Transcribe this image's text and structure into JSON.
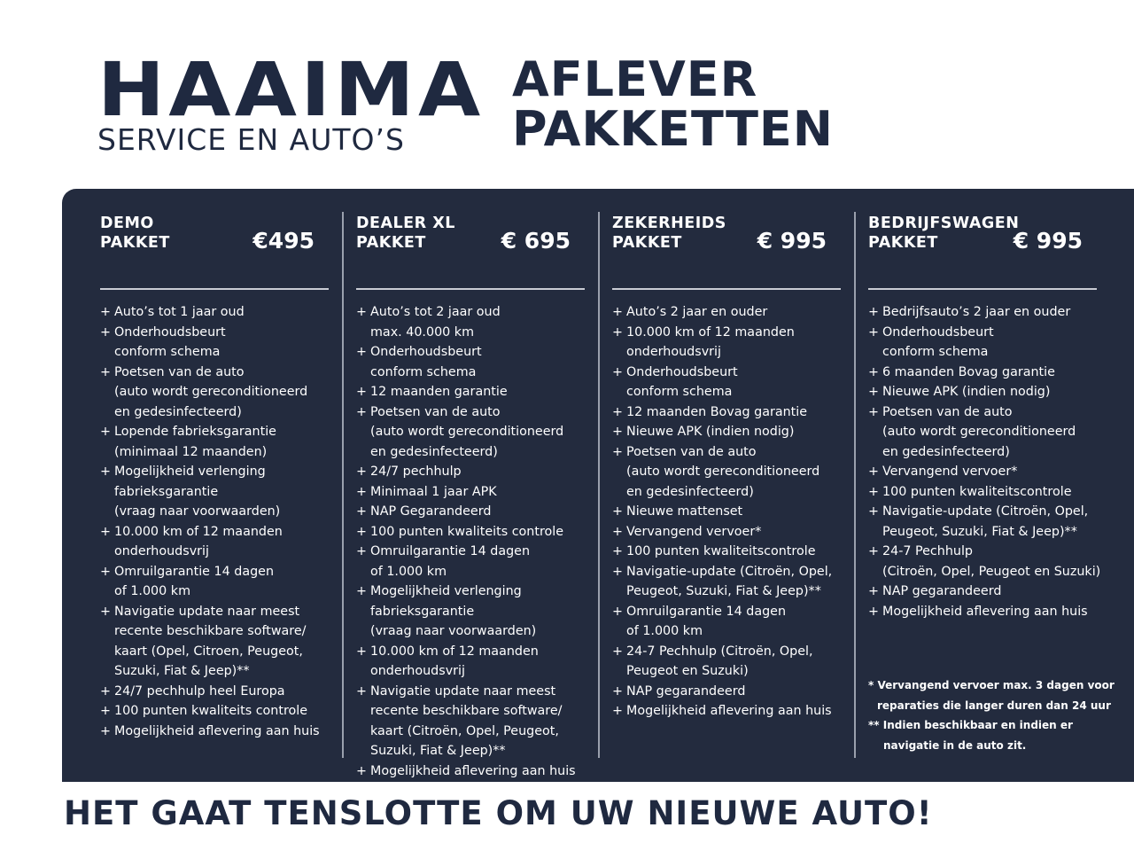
{
  "brand": {
    "name": "HAAIMA",
    "subtitle": "SERVICE EN AUTO’S"
  },
  "title": {
    "line1": "AFLEVER",
    "line2": "PAKKETTEN"
  },
  "colors": {
    "panel": "#232b3e",
    "text_dark": "#1f2940"
  },
  "packages": [
    {
      "name1": "DEMO",
      "name2": "PAKKET",
      "price": "€495",
      "items": [
        [
          "Auto’s tot 1 jaar oud"
        ],
        [
          "Onderhoudsbeurt",
          "conform schema"
        ],
        [
          "Poetsen van de auto",
          "(auto wordt gereconditioneerd",
          "en gedesinfecteerd)"
        ],
        [
          "Lopende fabrieksgarantie",
          "(minimaal 12 maanden)"
        ],
        [
          "Mogelijkheid verlenging",
          "fabrieksgarantie",
          "(vraag naar voorwaarden)"
        ],
        [
          "10.000 km of 12 maanden",
          "onderhoudsvrij"
        ],
        [
          "Omruilgarantie 14 dagen",
          "of 1.000 km"
        ],
        [
          "Navigatie update naar meest",
          "recente beschikbare software/",
          "kaart (Opel, Citroen,  Peugeot,",
          "Suzuki, Fiat & Jeep)**"
        ],
        [
          "24/7 pechhulp heel Europa"
        ],
        [
          "100 punten kwaliteits controle"
        ],
        [
          "Mogelijkheid aflevering aan huis"
        ]
      ]
    },
    {
      "name1": "DEALER XL",
      "name2": "PAKKET",
      "price": "€ 695",
      "items": [
        [
          "Auto’s tot 2 jaar oud",
          "max. 40.000 km"
        ],
        [
          "Onderhoudsbeurt",
          "conform schema"
        ],
        [
          "12 maanden garantie"
        ],
        [
          "Poetsen van de auto",
          "(auto wordt gereconditioneerd",
          "en gedesinfecteerd)"
        ],
        [
          "24/7 pechhulp"
        ],
        [
          "Minimaal 1 jaar APK"
        ],
        [
          "NAP Gegarandeerd"
        ],
        [
          "100 punten kwaliteits controle"
        ],
        [
          "Omruilgarantie 14 dagen",
          "of 1.000 km"
        ],
        [
          "Mogelijkheid verlenging",
          "fabrieksgarantie",
          "(vraag naar voorwaarden)"
        ],
        [
          "10.000 km of 12 maanden",
          "onderhoudsvrij"
        ],
        [
          "Navigatie update naar meest",
          "recente beschikbare software/",
          "kaart (Citroën, Opel, Peugeot,",
          "Suzuki, Fiat & Jeep)**"
        ],
        [
          "Mogelijkheid aflevering aan huis"
        ]
      ]
    },
    {
      "name1": "ZEKERHEIDS",
      "name2": "PAKKET",
      "price": "€ 995",
      "items": [
        [
          "Auto’s 2 jaar en ouder"
        ],
        [
          "10.000 km of 12 maanden",
          "onderhoudsvrij"
        ],
        [
          "Onderhoudsbeurt",
          "conform schema"
        ],
        [
          "12 maanden Bovag garantie"
        ],
        [
          "Nieuwe APK (indien nodig)"
        ],
        [
          "Poetsen van de auto",
          "(auto wordt gereconditioneerd",
          "en gedesinfecteerd)"
        ],
        [
          "Nieuwe mattenset"
        ],
        [
          "Vervangend vervoer*"
        ],
        [
          "100 punten kwaliteitscontrole"
        ],
        [
          "Navigatie-update (Citroën, Opel,",
          "Peugeot, Suzuki, Fiat & Jeep)**"
        ],
        [
          "Omruilgarantie 14 dagen",
          "of 1.000 km"
        ],
        [
          "24-7 Pechhulp (Citroën, Opel,",
          "Peugeot en Suzuki)"
        ],
        [
          "NAP gegarandeerd"
        ],
        [
          "Mogelijkheid aflevering aan huis"
        ]
      ]
    },
    {
      "name1": "BEDRIJFSWAGEN",
      "name2": "PAKKET",
      "price": "€ 995",
      "items": [
        [
          "Bedrijfsauto’s 2 jaar en ouder"
        ],
        [
          "Onderhoudsbeurt",
          "conform schema"
        ],
        [
          "6 maanden Bovag garantie"
        ],
        [
          "Nieuwe APK (indien nodig)"
        ],
        [
          "Poetsen van de auto",
          "(auto wordt gereconditioneerd",
          "en gedesinfecteerd)"
        ],
        [
          "Vervangend vervoer*"
        ],
        [
          "100 punten kwaliteitscontrole"
        ],
        [
          "Navigatie-update (Citroën, Opel,",
          "Peugeot, Suzuki, Fiat & Jeep)**"
        ],
        [
          "24-7 Pechhulp",
          "(Citroën, Opel, Peugeot en Suzuki)"
        ],
        [
          "NAP gegarandeerd"
        ],
        [
          "Mogelijkheid aflevering aan huis"
        ]
      ]
    }
  ],
  "notes": {
    "n1a": "* Vervangend vervoer max. 3 dagen voor",
    "n1b": "reparaties die langer duren dan 24 uur",
    "n2a": "** Indien beschikbaar en indien er",
    "n2b": "navigatie in de auto zit."
  },
  "slogan": "HET GAAT TENSLOTTE OM UW NIEUWE AUTO!"
}
